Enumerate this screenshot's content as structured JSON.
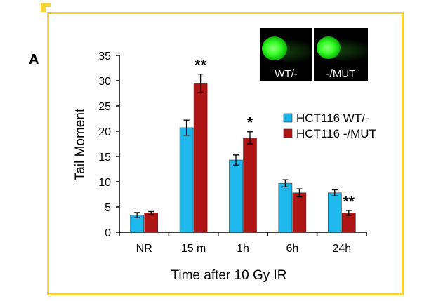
{
  "panel_label": "A",
  "inset": {
    "labels": [
      "WT/-",
      "-/MUT"
    ]
  },
  "chart_data": {
    "type": "bar",
    "categories": [
      "NR",
      "15 m",
      "1h",
      "6h",
      "24h"
    ],
    "series": [
      {
        "name": "HCT116 WT/-",
        "color": "#1eb8ec",
        "values": [
          3.4,
          20.7,
          14.3,
          9.7,
          7.8
        ],
        "errors": [
          0.5,
          1.5,
          1.0,
          0.7,
          0.6
        ]
      },
      {
        "name": "HCT116 -/MUT",
        "color": "#b01515",
        "values": [
          3.8,
          29.5,
          18.7,
          7.8,
          3.8
        ],
        "errors": [
          0.3,
          1.8,
          1.2,
          0.8,
          0.5
        ]
      }
    ],
    "significance": [
      {
        "category": "15 m",
        "marker": "**"
      },
      {
        "category": "1h",
        "marker": "*"
      },
      {
        "category": "24h",
        "marker": "**"
      }
    ],
    "xlabel": "Time after 10 Gy IR",
    "ylabel": "Tail Moment",
    "ylim": [
      0,
      35
    ],
    "yticks": [
      0,
      5,
      10,
      15,
      20,
      25,
      30,
      35
    ],
    "grid": false,
    "legend_position": "right"
  }
}
